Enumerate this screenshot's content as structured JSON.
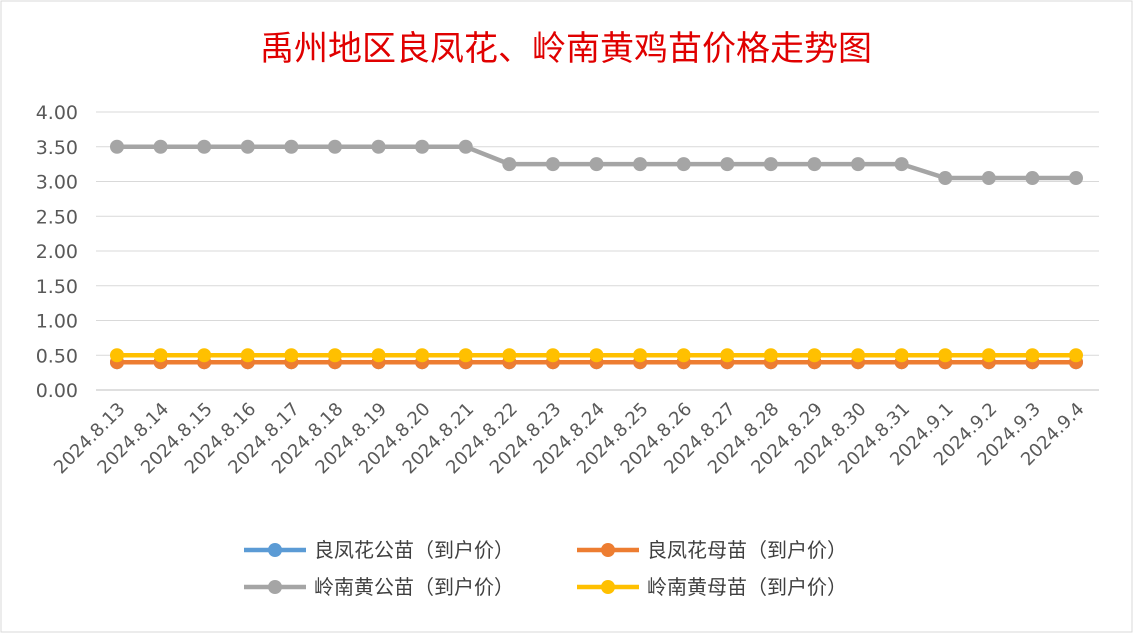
{
  "chart_data": {
    "type": "line",
    "title": "禹州地区良凤花、岭南黄鸡苗价格走势图",
    "xlabel": "",
    "ylabel": "",
    "categories": [
      "2024.8.13",
      "2024.8.14",
      "2024.8.15",
      "2024.8.16",
      "2024.8.17",
      "2024.8.18",
      "2024.8.19",
      "2024.8.20",
      "2024.8.21",
      "2024.8.22",
      "2024.8.23",
      "2024.8.24",
      "2024.8.25",
      "2024.8.26",
      "2024.8.27",
      "2024.8.28",
      "2024.8.29",
      "2024.8.30",
      "2024.8.31",
      "2024.9.1",
      "2024.9.2",
      "2024.9.3",
      "2024.9.4"
    ],
    "yticks": [
      "0.00",
      "0.50",
      "1.00",
      "1.50",
      "2.00",
      "2.50",
      "3.00",
      "3.50",
      "4.00"
    ],
    "ylim": [
      0,
      4
    ],
    "grid": true,
    "legend_position": "bottom",
    "series": [
      {
        "name": "良凤花公苗（到户价）",
        "color": "#5b9bd5",
        "values": [
          0.4,
          0.4,
          0.4,
          0.4,
          0.4,
          0.4,
          0.4,
          0.4,
          0.4,
          0.4,
          0.4,
          0.4,
          0.4,
          0.4,
          0.4,
          0.4,
          0.4,
          0.4,
          0.4,
          0.4,
          0.4,
          0.4,
          0.4
        ]
      },
      {
        "name": "良凤花母苗（到户价）",
        "color": "#ed7d31",
        "values": [
          0.4,
          0.4,
          0.4,
          0.4,
          0.4,
          0.4,
          0.4,
          0.4,
          0.4,
          0.4,
          0.4,
          0.4,
          0.4,
          0.4,
          0.4,
          0.4,
          0.4,
          0.4,
          0.4,
          0.4,
          0.4,
          0.4,
          0.4
        ]
      },
      {
        "name": "岭南黄公苗（到户价）",
        "color": "#a5a5a5",
        "values": [
          3.5,
          3.5,
          3.5,
          3.5,
          3.5,
          3.5,
          3.5,
          3.5,
          3.5,
          3.25,
          3.25,
          3.25,
          3.25,
          3.25,
          3.25,
          3.25,
          3.25,
          3.25,
          3.25,
          3.05,
          3.05,
          3.05,
          3.05
        ]
      },
      {
        "name": "岭南黄母苗（到户价）",
        "color": "#ffc000",
        "values": [
          0.5,
          0.5,
          0.5,
          0.5,
          0.5,
          0.5,
          0.5,
          0.5,
          0.5,
          0.5,
          0.5,
          0.5,
          0.5,
          0.5,
          0.5,
          0.5,
          0.5,
          0.5,
          0.5,
          0.5,
          0.5,
          0.5,
          0.5
        ]
      }
    ]
  }
}
